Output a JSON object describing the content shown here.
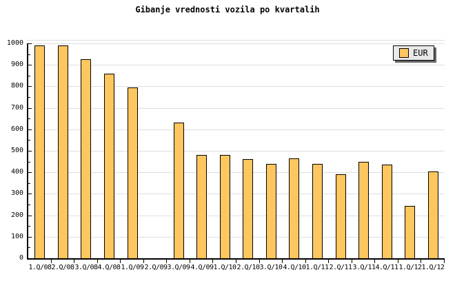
{
  "chart_data": {
    "type": "bar",
    "title": "Gibanje vrednosti vozila po kvartalih",
    "series_name": "EUR",
    "categories": [
      "1.Q/08",
      "2.Q/08",
      "3.Q/08",
      "4.Q/08",
      "1.Q/09",
      "2.Q/09",
      "3.Q/09",
      "4.Q/09",
      "1.Q/10",
      "2.Q/10",
      "3.Q/10",
      "4.Q/10",
      "1.Q/11",
      "2.Q/11",
      "3.Q/11",
      "4.Q/11",
      "1.Q/12",
      "1.Q/12"
    ],
    "values": [
      990,
      990,
      925,
      860,
      795,
      null,
      630,
      480,
      480,
      460,
      440,
      465,
      440,
      390,
      450,
      435,
      245,
      405
    ],
    "xlabel": "",
    "ylabel": "",
    "ylim": [
      0,
      1000
    ],
    "ytick_major": 100,
    "ytick_minor": 50,
    "ytick_labels": [
      "0",
      "100",
      "200",
      "300",
      "400",
      "500",
      "600",
      "700",
      "800",
      "900",
      "1000"
    ],
    "grid": "horizontal-major",
    "legend_position": "top-right",
    "colors": {
      "background": "#FFFFFF",
      "bar_fill": "#FDC65F",
      "bar_border": "#000000",
      "grid": "#DEDEDE",
      "axis": "#000000",
      "text": "#000000",
      "legend_bg": "#E9E9E9",
      "legend_border": "#000000",
      "legend_shadow": "#666666"
    }
  }
}
